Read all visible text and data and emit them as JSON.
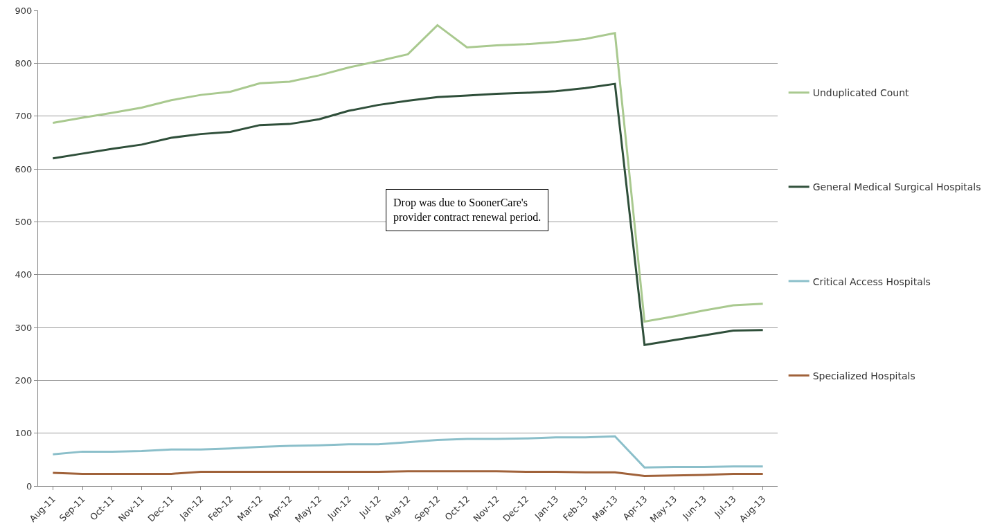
{
  "chart_data": {
    "type": "line",
    "categories": [
      "Aug-11",
      "Sep-11",
      "Oct-11",
      "Nov-11",
      "Dec-11",
      "Jan-12",
      "Feb-12",
      "Mar-12",
      "Apr-12",
      "May-12",
      "Jun-12",
      "Jul-12",
      "Aug-12",
      "Sep-12",
      "Oct-12",
      "Nov-12",
      "Dec-12",
      "Jan-13",
      "Feb-13",
      "Mar-13",
      "Apr-13",
      "May-13",
      "Jun-13",
      "Jul-13",
      "Aug-13"
    ],
    "series": [
      {
        "name": "Unduplicated Count",
        "color": "#a9c98f",
        "values": [
          687,
          697,
          706,
          716,
          730,
          740,
          746,
          762,
          765,
          777,
          792,
          804,
          817,
          872,
          830,
          834,
          836,
          840,
          846,
          857,
          311,
          321,
          332,
          342,
          345
        ]
      },
      {
        "name": "General Medical Surgical Hospitals",
        "color": "#2f4f3a",
        "values": [
          620,
          629,
          638,
          646,
          659,
          666,
          670,
          683,
          685,
          694,
          710,
          721,
          729,
          736,
          739,
          742,
          744,
          747,
          753,
          761,
          267,
          276,
          285,
          294,
          295
        ]
      },
      {
        "name": "Critical Access Hospitals",
        "color": "#8bbfca",
        "values": [
          60,
          65,
          65,
          66,
          69,
          69,
          71,
          74,
          76,
          77,
          79,
          79,
          83,
          87,
          89,
          89,
          90,
          92,
          92,
          94,
          35,
          36,
          36,
          37,
          37
        ]
      },
      {
        "name": "Specialized Hospitals",
        "color": "#a0623a",
        "values": [
          25,
          23,
          23,
          23,
          23,
          27,
          27,
          27,
          27,
          27,
          27,
          27,
          28,
          28,
          28,
          28,
          27,
          27,
          26,
          26,
          19,
          20,
          21,
          23,
          23
        ]
      }
    ],
    "ylim": [
      0,
      900
    ],
    "yticks": [
      0,
      100,
      200,
      300,
      400,
      500,
      600,
      700,
      800,
      900
    ],
    "grid": "y",
    "legend": "right",
    "marker": "none",
    "line_style": "solid",
    "annotations": [
      "Drop was due to SoonerCare's provider contract renewal period."
    ]
  }
}
